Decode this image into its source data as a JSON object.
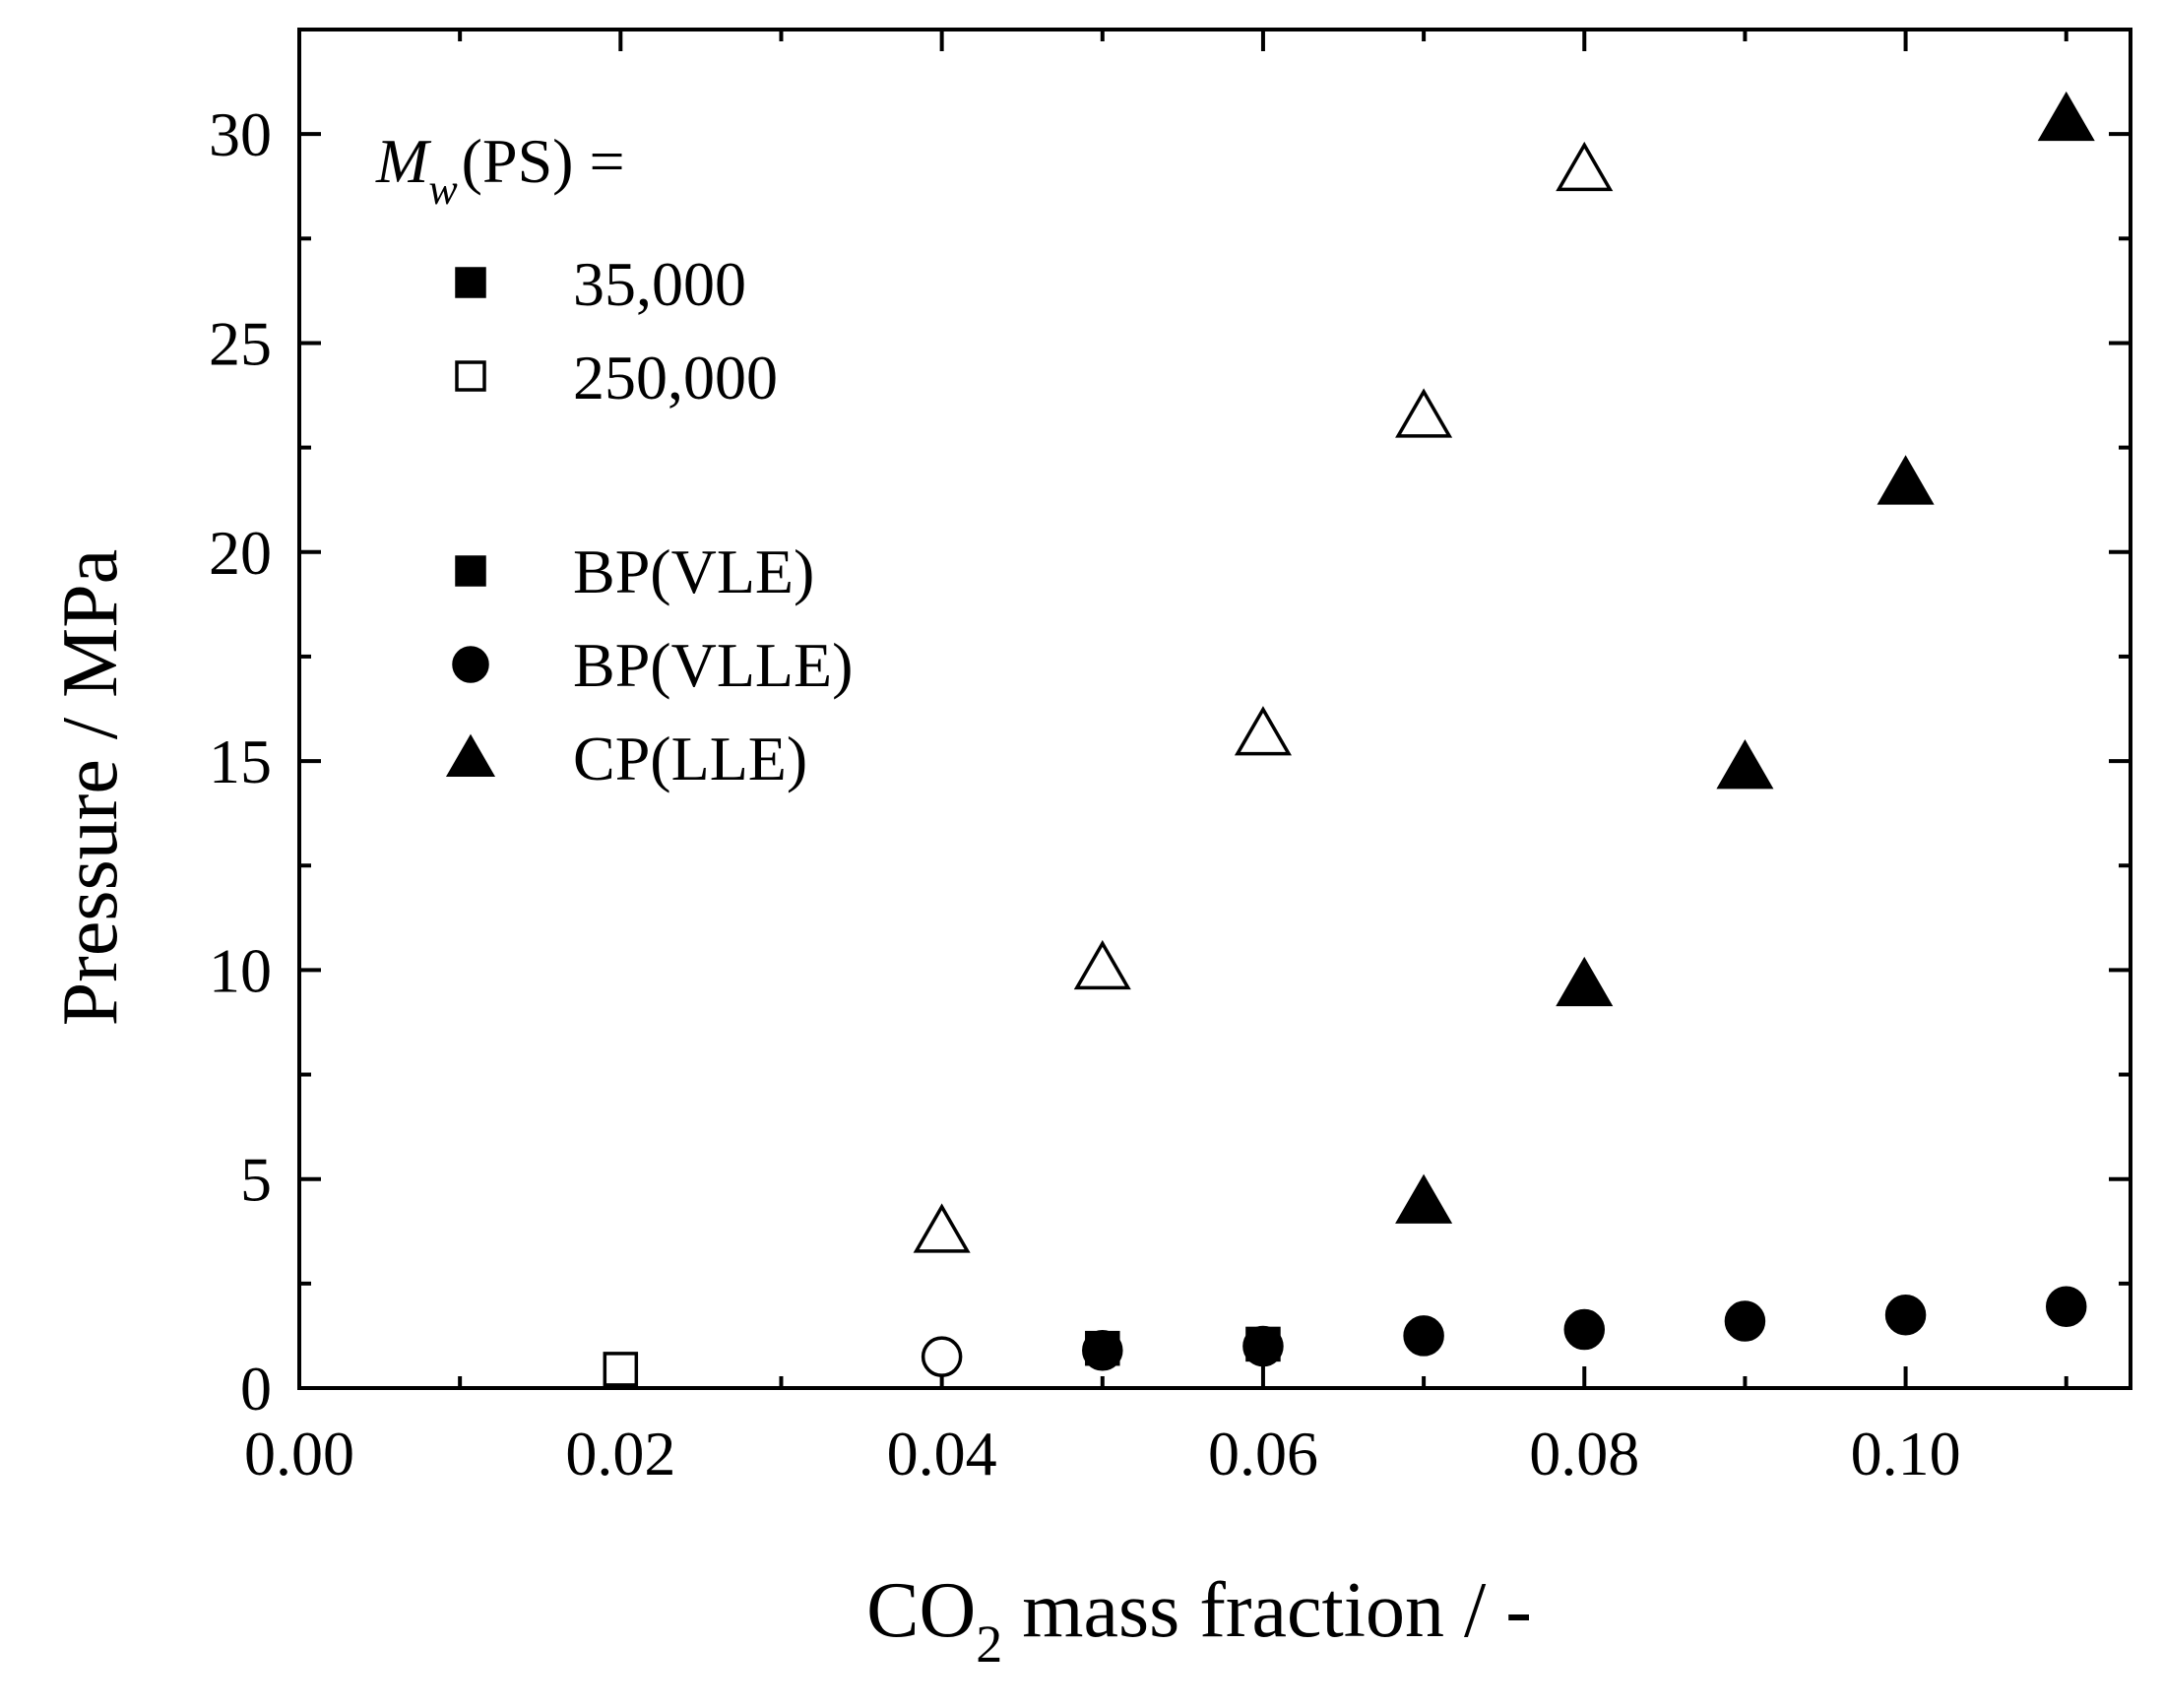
{
  "chart_data": {
    "type": "scatter",
    "title": "",
    "xlabel": {
      "main": "CO",
      "sub": "2",
      "rest": " mass fraction / -"
    },
    "ylabel": "Pressure / MPa",
    "xlim": [
      0,
      0.114
    ],
    "ylim": [
      0,
      32.5
    ],
    "x_ticks": [
      0.0,
      0.02,
      0.04,
      0.06,
      0.08,
      0.1
    ],
    "x_tick_labels": [
      "0.00",
      "0.02",
      "0.04",
      "0.06",
      "0.08",
      "0.10"
    ],
    "y_ticks": [
      0,
      5,
      10,
      15,
      20,
      25,
      30
    ],
    "y_tick_labels": [
      "0",
      "5",
      "10",
      "15",
      "20",
      "25",
      "30"
    ],
    "x_minor_step": 0.01,
    "y_minor_step": 2.5,
    "legend": {
      "placement": "top-left",
      "mw_heading": {
        "m": "M",
        "sub": "w",
        "rest": "(PS) ="
      },
      "mw_entries": [
        {
          "label": "35,000",
          "marker": "square",
          "fill": "filled"
        },
        {
          "label": "250,000",
          "marker": "square",
          "fill": "open"
        }
      ],
      "type_entries": [
        {
          "label": "BP(VLE)",
          "marker": "square"
        },
        {
          "label": "BP(VLLE)",
          "marker": "circle"
        },
        {
          "label": "CP(LLE)",
          "marker": "triangle"
        }
      ]
    },
    "series": [
      {
        "name": "BP(VLE) 250,000",
        "marker": "square",
        "fill": "open",
        "x": [
          0.02
        ],
        "y": [
          0.45
        ]
      },
      {
        "name": "BP(VLLE) 250,000",
        "marker": "circle",
        "fill": "open",
        "x": [
          0.04
        ],
        "y": [
          0.75
        ]
      },
      {
        "name": "CP(LLE) 250,000",
        "marker": "triangle",
        "fill": "open",
        "x": [
          0.04,
          0.05,
          0.06,
          0.07,
          0.08
        ],
        "y": [
          3.7,
          10.0,
          15.6,
          23.2,
          29.1
        ]
      },
      {
        "name": "BP(VLE) 35,000",
        "marker": "square",
        "fill": "filled",
        "x": [
          0.05,
          0.06
        ],
        "y": [
          0.95,
          1.05
        ]
      },
      {
        "name": "BP(VLLE) 35,000",
        "marker": "circle",
        "fill": "filled",
        "x": [
          0.05,
          0.06,
          0.07,
          0.08,
          0.09,
          0.1,
          0.11
        ],
        "y": [
          0.9,
          1.0,
          1.25,
          1.4,
          1.6,
          1.75,
          1.95
        ]
      },
      {
        "name": "CP(LLE) 35,000",
        "marker": "triangle",
        "fill": "filled",
        "x": [
          0.07,
          0.08,
          0.09,
          0.1,
          0.11
        ],
        "y": [
          4.4,
          9.6,
          14.8,
          21.6,
          30.3
        ]
      }
    ]
  }
}
